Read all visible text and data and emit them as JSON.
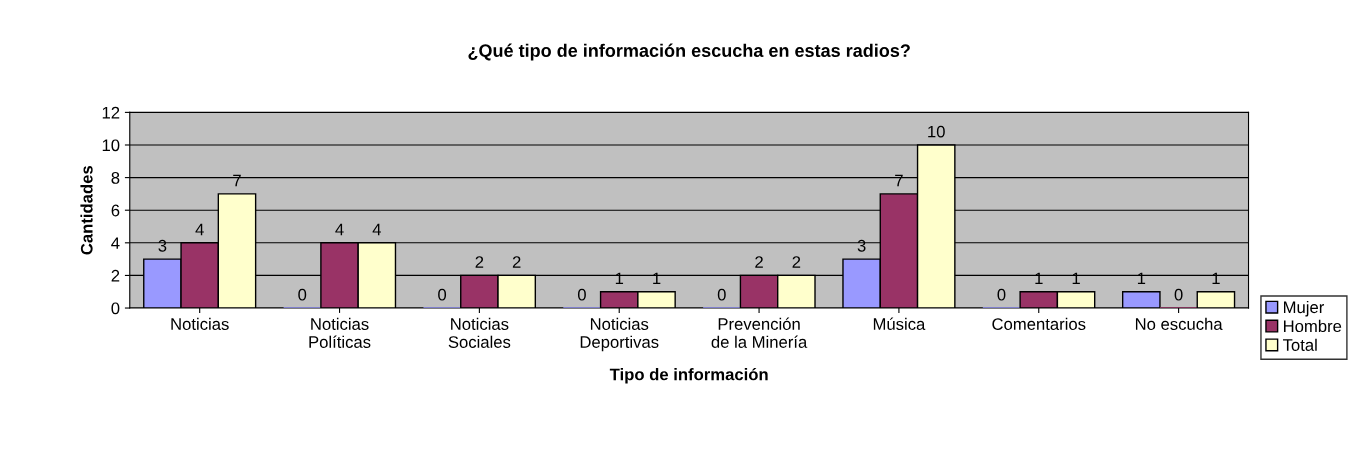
{
  "chart_data": {
    "type": "bar",
    "title": "¿Qué tipo de información escucha en estas radios?",
    "xlabel": "Tipo de información",
    "ylabel": "Cantidades",
    "categories": [
      "Noticias",
      "Noticias\nPolíticas",
      "Noticias\nSociales",
      "Noticias\nDeportivas",
      "Prevención\nde la Minería",
      "Música",
      "Comentarios",
      "No escucha"
    ],
    "series": [
      {
        "name": "Mujer",
        "color": "#9999ff",
        "values": [
          3,
          0,
          0,
          0,
          0,
          3,
          0,
          1
        ]
      },
      {
        "name": "Hombre",
        "color": "#993366",
        "values": [
          4,
          4,
          2,
          1,
          2,
          7,
          1,
          0
        ]
      },
      {
        "name": "Total",
        "color": "#ffffcc",
        "values": [
          7,
          4,
          2,
          1,
          2,
          10,
          1,
          1
        ]
      }
    ],
    "ylim": [
      0,
      12
    ],
    "yticks": [
      0,
      2,
      4,
      6,
      8,
      10,
      12
    ],
    "grid": "y",
    "legend": "right",
    "data_labels": true
  }
}
